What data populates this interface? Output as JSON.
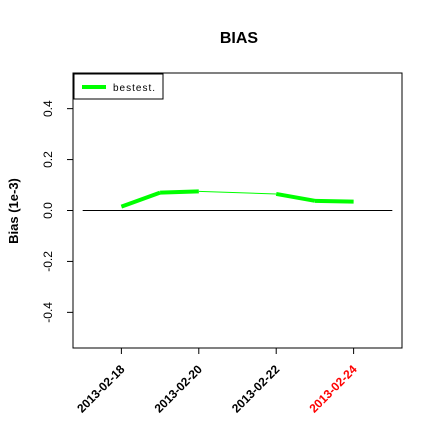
{
  "chart_data": {
    "type": "line",
    "title": "BIAS",
    "xlabel": "",
    "ylabel": "Bias (1e-3)",
    "xlim": [
      "2013-02-16 18:00",
      "2013-02-25 06:00"
    ],
    "ylim": [
      -0.54,
      0.54
    ],
    "x_ticks": [
      {
        "label": "2013-02-18",
        "value": "2013-02-18",
        "color": "#000000"
      },
      {
        "label": "2013-02-20",
        "value": "2013-02-20",
        "color": "#000000"
      },
      {
        "label": "2013-02-22",
        "value": "2013-02-22",
        "color": "#000000"
      },
      {
        "label": "2013-02-24",
        "value": "2013-02-24",
        "color": "#ff0000"
      }
    ],
    "y_ticks": [
      {
        "label": "-0.4",
        "value": -0.4
      },
      {
        "label": "-0.2",
        "value": -0.2
      },
      {
        "label": "0.0",
        "value": 0.0
      },
      {
        "label": "0.2",
        "value": 0.2
      },
      {
        "label": "0.4",
        "value": 0.4
      }
    ],
    "reference_line": {
      "y": 0,
      "x_from": "2013-02-17",
      "x_to": "2013-02-25",
      "color": "#000000"
    },
    "series": [
      {
        "name": "bestest.",
        "color": "#00ff00",
        "x": [
          "2013-02-18",
          "2013-02-19",
          "2013-02-20",
          "2013-02-21",
          "2013-02-22",
          "2013-02-23",
          "2013-02-24"
        ],
        "y": [
          0.015,
          0.07,
          0.075,
          null,
          0.065,
          0.038,
          0.035
        ]
      }
    ],
    "gap_connector": {
      "from": "2013-02-20",
      "to": "2013-02-22",
      "color": "#00ff00"
    },
    "legend": {
      "position": "top-left",
      "entries": [
        "bestest."
      ]
    },
    "grid": false
  }
}
